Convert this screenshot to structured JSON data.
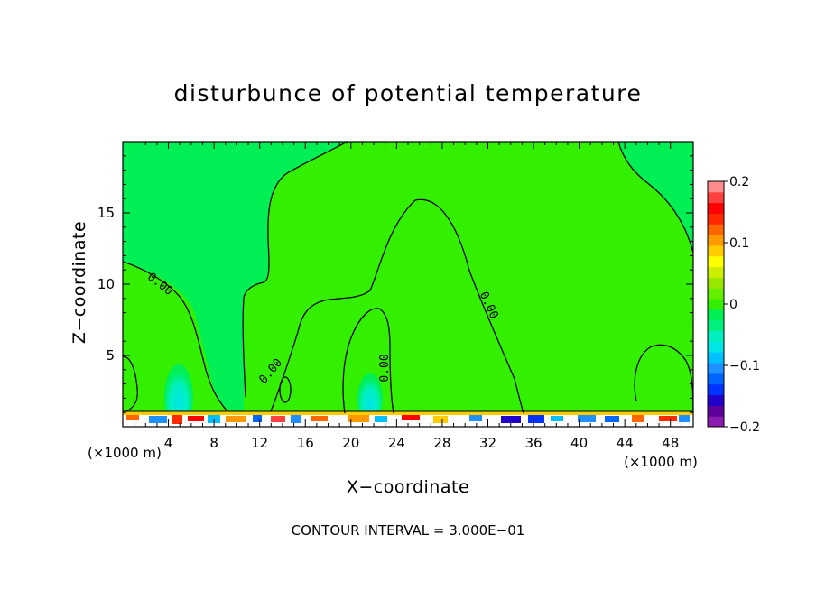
{
  "chart_data": {
    "type": "heatmap",
    "title": "disturbunce of potential temperature",
    "xlabel": "X−coordinate",
    "ylabel": "Z−coordinate",
    "x_unit": "(×1000 m)",
    "x_unit_right": "(×1000 m)",
    "xlim": [
      0,
      50
    ],
    "ylim": [
      0,
      20
    ],
    "x_ticks": [
      4,
      8,
      12,
      16,
      20,
      24,
      28,
      32,
      36,
      40,
      44,
      48
    ],
    "y_ticks": [
      5,
      10,
      15
    ],
    "contour_interval_text": "CONTOUR INTERVAL = 3.000E−01",
    "contour_labels": [
      "0.00",
      "0.00",
      "0.00",
      "0.00"
    ],
    "colorbar": {
      "min": -0.2,
      "max": 0.2,
      "tick_labels": [
        "0.2",
        "0.1",
        "0",
        "−0.1",
        "−0.2"
      ],
      "tick_values": [
        0.2,
        0.1,
        0,
        -0.1,
        -0.2
      ],
      "colors": [
        "#8a1ab0",
        "#5c0099",
        "#2200cc",
        "#0033ff",
        "#0066ff",
        "#1e90ff",
        "#00c0ff",
        "#00e5e5",
        "#00f0c0",
        "#00f080",
        "#00ef55",
        "#33f000",
        "#66ee00",
        "#99e600",
        "#ccee00",
        "#ffff00",
        "#ffcc00",
        "#ff9900",
        "#ff6600",
        "#ff2a00",
        "#ff0000",
        "#ff4040",
        "#ff8c8c"
      ]
    },
    "field": {
      "background_value": 0.0,
      "background_color": "#33f000",
      "interior_color": "#00ef55",
      "boundary_layer_top_z": 1.0
    }
  }
}
